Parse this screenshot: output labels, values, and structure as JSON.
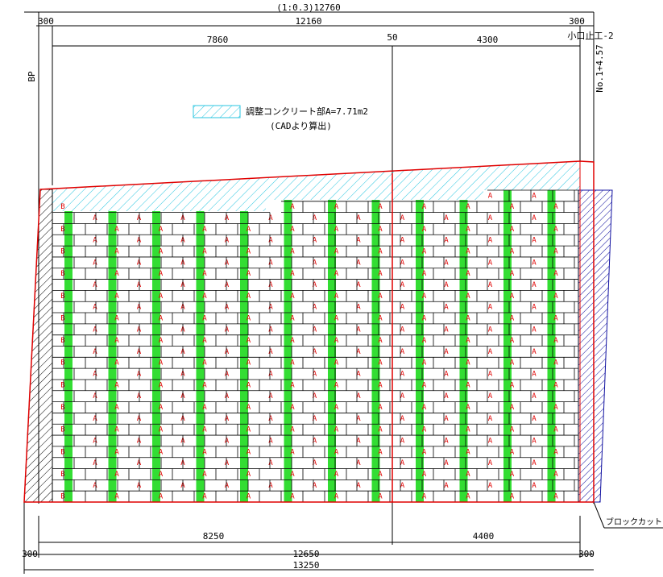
{
  "dimensions": {
    "top_total": "(1:0.3)12760",
    "top_left_offset": "300",
    "top_span": "12160",
    "top_right_offset": "300",
    "top_left_part": "7860",
    "top_gap": "50",
    "top_right_part": "4300",
    "bottom_left_part": "8250",
    "bottom_right_part": "4400",
    "bottom_left_offset": "300",
    "bottom_span": "12650",
    "bottom_right_offset": "300",
    "bottom_total": "13250"
  },
  "labels": {
    "start": "BP",
    "end_station": "No.1+4.57",
    "end_wall": "小口止工-2",
    "block_cut": "ブロックカット"
  },
  "legend": {
    "label": "調整コンクリート部A=7.71m2",
    "note": "(CADより算出)"
  },
  "blocks": {
    "standard": "A",
    "edge": "B"
  }
}
